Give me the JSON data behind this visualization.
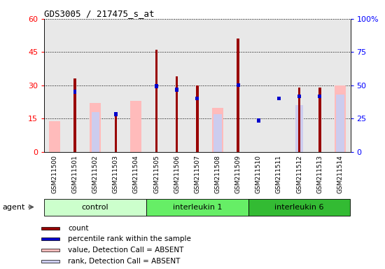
{
  "title": "GDS3005 / 217475_s_at",
  "samples": [
    "GSM211500",
    "GSM211501",
    "GSM211502",
    "GSM211503",
    "GSM211504",
    "GSM211505",
    "GSM211506",
    "GSM211507",
    "GSM211508",
    "GSM211509",
    "GSM211510",
    "GSM211511",
    "GSM211512",
    "GSM211513",
    "GSM211514"
  ],
  "count": [
    0,
    33,
    0,
    18,
    0,
    46,
    34,
    30,
    0,
    51,
    0,
    0,
    29,
    29,
    0
  ],
  "percentile_rank": [
    0,
    28,
    0,
    18,
    0,
    30.5,
    29,
    25,
    0,
    31,
    15,
    25,
    26,
    26,
    0
  ],
  "value_absent": [
    14,
    0,
    22,
    0,
    23,
    0,
    0,
    0,
    20,
    0,
    0,
    0,
    0,
    0,
    30
  ],
  "rank_absent": [
    0,
    0,
    18,
    0,
    0,
    0,
    0,
    0,
    17,
    0,
    0,
    0,
    21,
    0,
    26
  ],
  "groups": [
    {
      "label": "control",
      "start": 0,
      "end": 5,
      "color": "#ccffcc"
    },
    {
      "label": "interleukin 1",
      "start": 5,
      "end": 10,
      "color": "#66ee66"
    },
    {
      "label": "interleukin 6",
      "start": 10,
      "end": 15,
      "color": "#33bb33"
    }
  ],
  "ylim_left": [
    0,
    60
  ],
  "ylim_right": [
    0,
    100
  ],
  "yticks_left": [
    0,
    15,
    30,
    45,
    60
  ],
  "yticks_right": [
    0,
    25,
    50,
    75,
    100
  ],
  "color_count": "#990000",
  "color_rank": "#0000cc",
  "color_value_absent": "#ffbbbb",
  "color_rank_absent": "#ccccee",
  "bg_plot": "#e8e8e8",
  "bg_xtick": "#cccccc"
}
